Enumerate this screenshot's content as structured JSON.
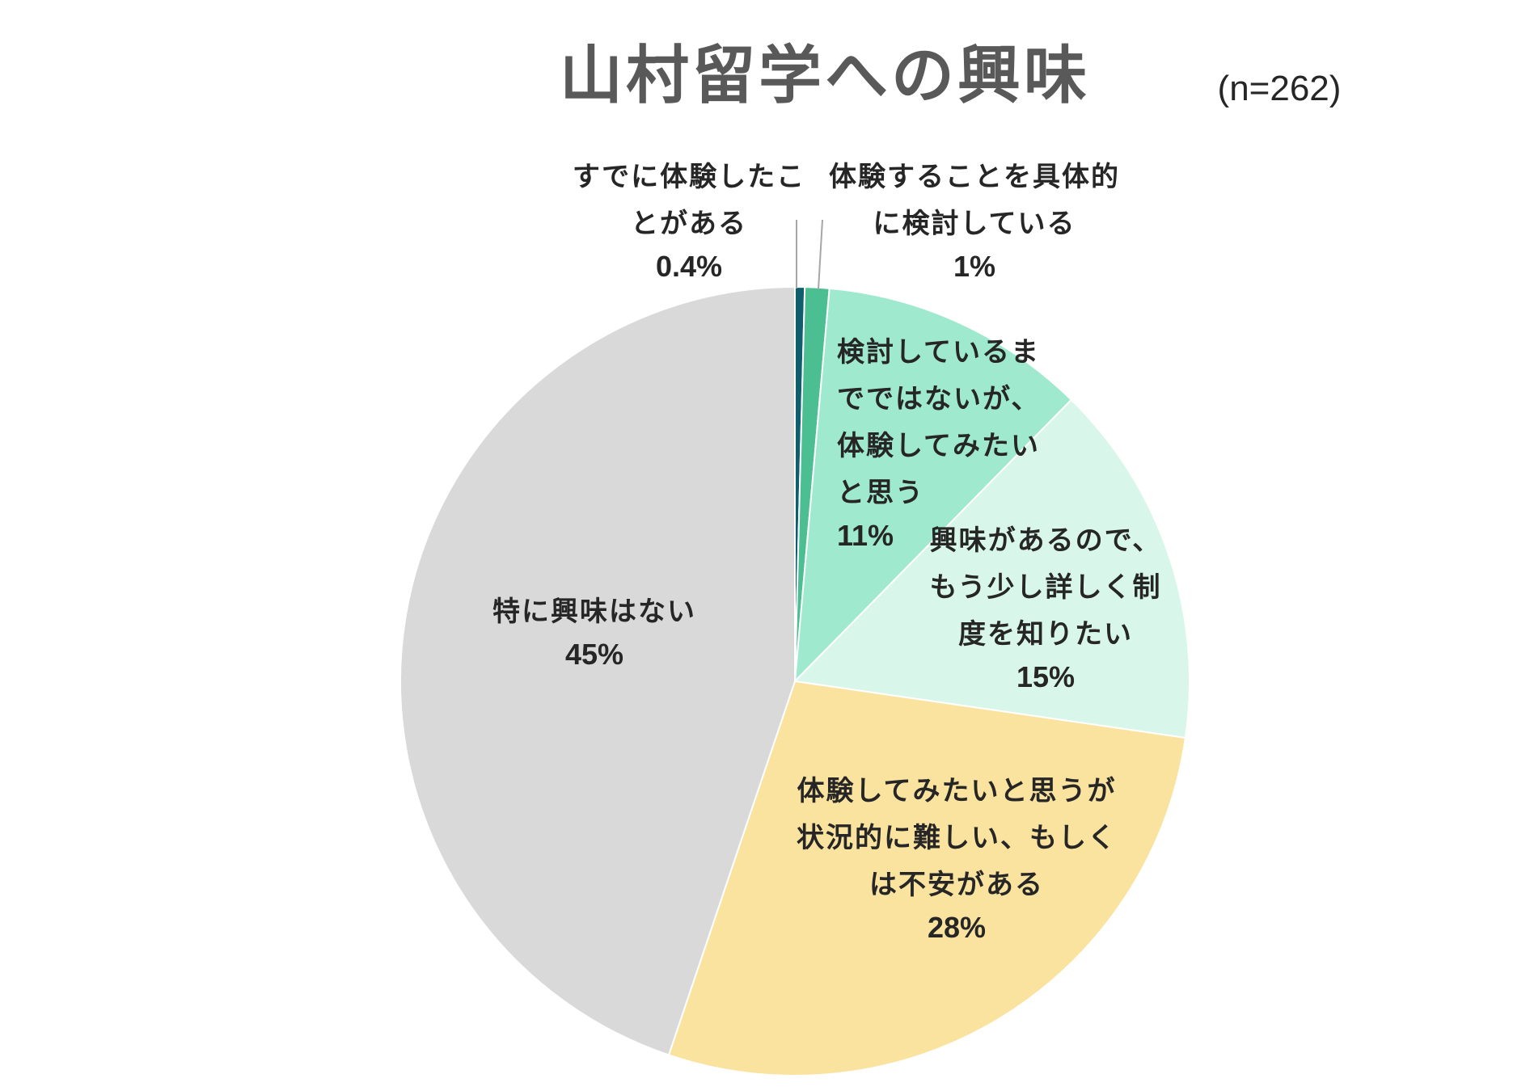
{
  "chart_data": {
    "type": "pie",
    "title": "山村留学への興味",
    "subtitle": "(n=262)",
    "start_angle_deg": 0,
    "direction": "clockwise",
    "slices": [
      {
        "label_lines": [
          "すでに体験したこ",
          "とがある"
        ],
        "value": 0.4,
        "value_label": "0.4%",
        "color": "#0f5e6e"
      },
      {
        "label_lines": [
          "体験することを具体的",
          "に検討している"
        ],
        "value": 1,
        "value_label": "1%",
        "color": "#4cbf92"
      },
      {
        "label_lines": [
          "検討しているま",
          "でではないが、",
          "体験してみたい",
          "と思う"
        ],
        "value": 11,
        "value_label": "11%",
        "color": "#9fe9cf"
      },
      {
        "label_lines": [
          "興味があるので、",
          "もう少し詳しく制",
          "度を知りたい"
        ],
        "value": 15,
        "value_label": "15%",
        "color": "#d8f7ea"
      },
      {
        "label_lines": [
          "体験してみたいと思うが",
          "状況的に難しい、もしく",
          "は不安がある"
        ],
        "value": 28,
        "value_label": "28%",
        "color": "#fae39f"
      },
      {
        "label_lines": [
          "特に興味はない"
        ],
        "value": 45,
        "value_label": "45%",
        "color": "#d9d9d9"
      }
    ]
  }
}
